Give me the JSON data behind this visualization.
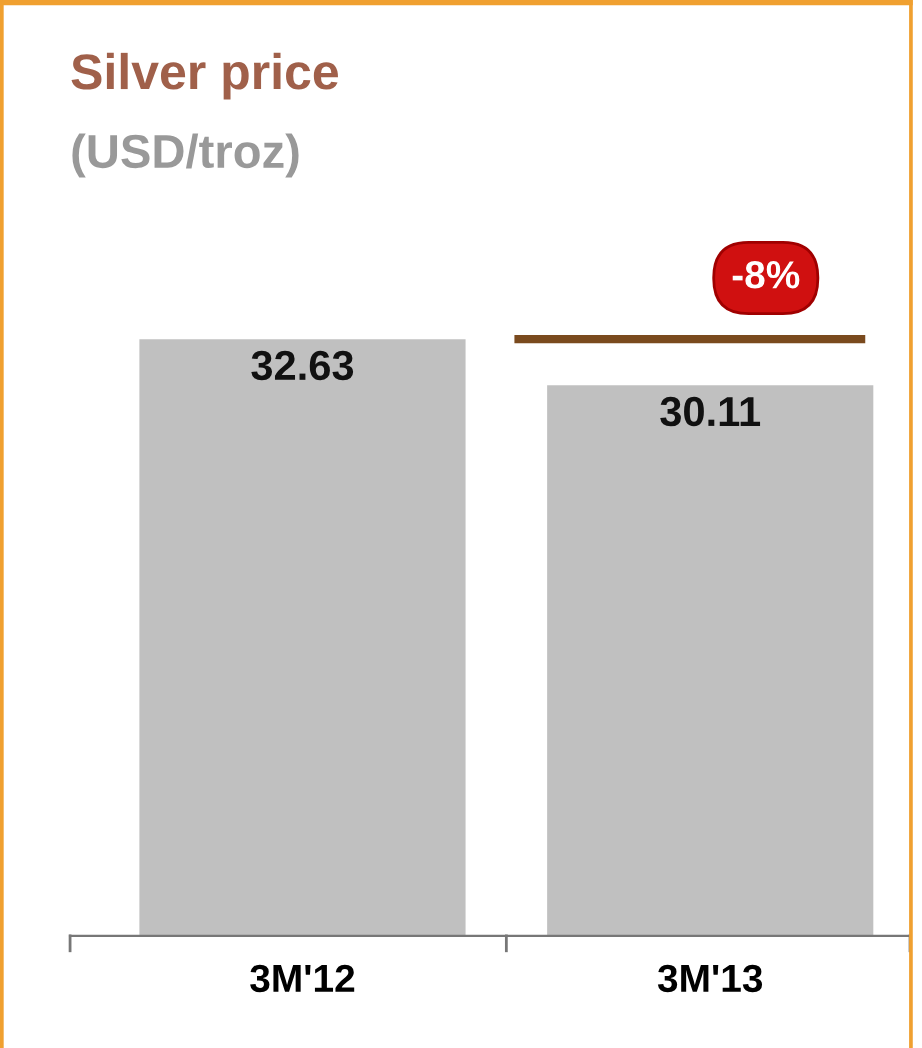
{
  "chart_data": {
    "type": "bar",
    "title": "Silver price",
    "subtitle": "(USD/troz)",
    "categories": [
      "3M'12",
      "3M'13"
    ],
    "values": [
      32.63,
      30.11
    ],
    "color": "#c0c0c0",
    "data_labels": true,
    "annotations": [
      {
        "text": "-8%",
        "x": "3M'13",
        "y": 32.63
      }
    ],
    "ref_lines": [
      {
        "axis": "y",
        "value": 32.63,
        "color": "#7a4a1e"
      }
    ]
  }
}
